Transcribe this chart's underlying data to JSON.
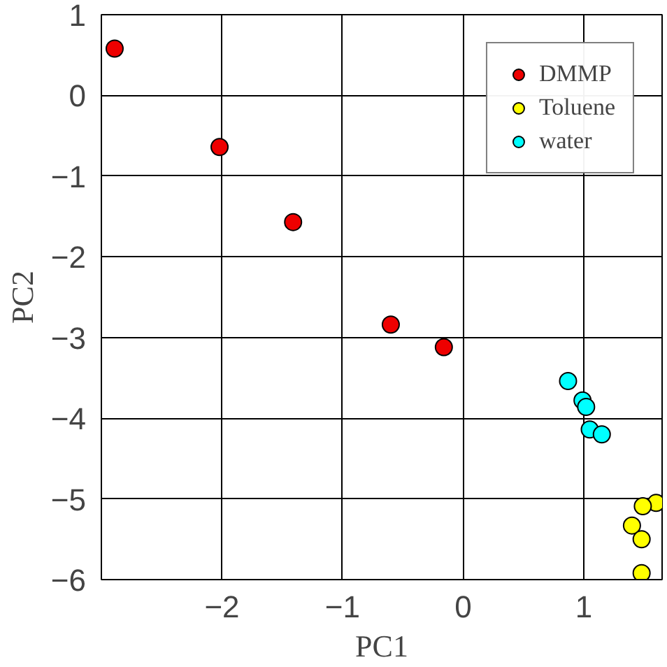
{
  "chart_data": {
    "type": "scatter",
    "xlabel": "PC1",
    "ylabel": "PC2",
    "xlim": [
      -3,
      1.65
    ],
    "ylim": [
      -6,
      1
    ],
    "xticks": [
      -2,
      -1,
      0,
      1
    ],
    "yticks": [
      -6,
      -5,
      -4,
      -3,
      -2,
      -1,
      0,
      1
    ],
    "grid": true,
    "legend": "top right",
    "marker": "circle",
    "series": [
      {
        "name": "DMMP",
        "color": "#ee0000",
        "x": [
          -2.89,
          -2.02,
          -1.41,
          -0.6,
          -0.16
        ],
        "values": [
          0.58,
          -0.64,
          -1.57,
          -2.84,
          -3.12
        ]
      },
      {
        "name": "Toluene",
        "color": "#ffff00",
        "x": [
          1.6,
          1.49,
          1.4,
          1.48,
          1.48
        ],
        "values": [
          -5.05,
          -5.09,
          -5.33,
          -5.5,
          -5.92
        ]
      },
      {
        "name": "water",
        "color": "#00ffff",
        "x": [
          0.87,
          0.99,
          1.02,
          1.05,
          1.15
        ],
        "values": [
          -3.54,
          -3.78,
          -3.86,
          -4.14,
          -4.2
        ]
      }
    ]
  }
}
